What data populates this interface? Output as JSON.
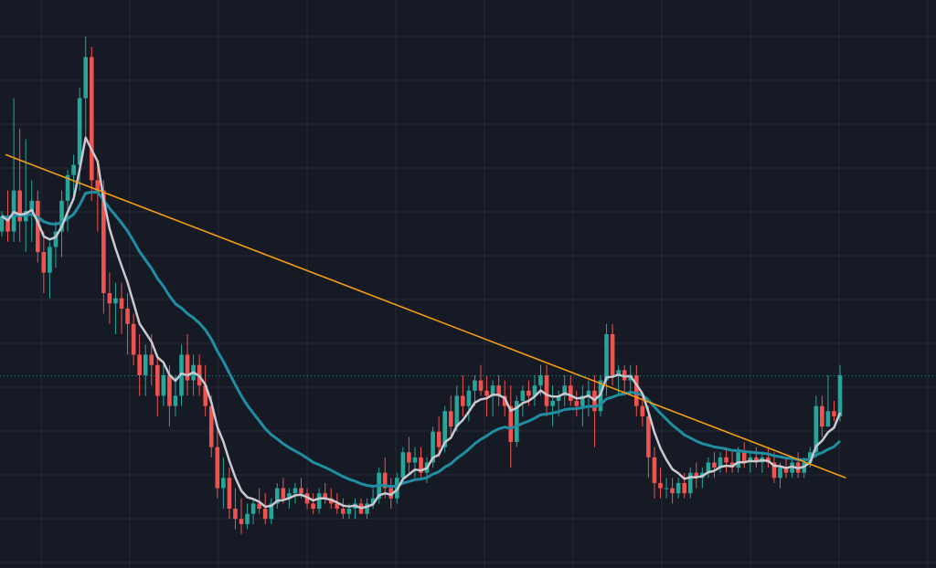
{
  "theme": {
    "background": "#161a25",
    "grid": "#242936",
    "up": "#26a69a",
    "down": "#ef5350",
    "ma_fast_color": "#c9c9cf",
    "ma_slow_color": "#1f8ea3",
    "trendline_color": "#f39c12",
    "price_line_color": "#26a69a"
  },
  "chart_data": {
    "type": "candlestick",
    "title": "",
    "xlabel": "",
    "ylabel": "",
    "grid": true,
    "ylim": [
      0,
      100
    ],
    "x_index_range": [
      0,
      155
    ],
    "last_price": 33.9,
    "candles": [
      [
        62,
        66,
        61,
        65
      ],
      [
        65,
        70,
        60,
        62
      ],
      [
        62,
        88,
        60,
        70
      ],
      [
        70,
        82,
        60,
        64
      ],
      [
        64,
        80,
        58,
        66
      ],
      [
        66,
        72,
        60,
        68
      ],
      [
        68,
        70,
        56,
        58
      ],
      [
        58,
        62,
        50,
        54
      ],
      [
        54,
        60,
        49,
        59
      ],
      [
        59,
        64,
        55,
        62
      ],
      [
        62,
        70,
        57,
        68
      ],
      [
        68,
        74,
        62,
        73
      ],
      [
        73,
        77,
        68,
        75
      ],
      [
        75,
        90,
        70,
        88
      ],
      [
        88,
        100,
        80,
        96
      ],
      [
        96,
        98,
        68,
        72
      ],
      [
        72,
        76,
        62,
        70
      ],
      [
        70,
        72,
        46,
        50
      ],
      [
        50,
        54,
        44,
        48
      ],
      [
        48,
        52,
        42,
        49
      ],
      [
        49,
        52,
        42,
        47
      ],
      [
        47,
        50,
        38,
        44
      ],
      [
        44,
        46,
        36,
        38
      ],
      [
        38,
        42,
        30,
        34
      ],
      [
        34,
        40,
        30,
        38
      ],
      [
        38,
        42,
        32,
        36
      ],
      [
        36,
        38,
        26,
        30
      ],
      [
        30,
        36,
        28,
        34
      ],
      [
        34,
        36,
        24,
        28
      ],
      [
        28,
        34,
        26,
        30
      ],
      [
        30,
        40,
        28,
        38
      ],
      [
        38,
        42,
        30,
        33
      ],
      [
        33,
        38,
        30,
        36
      ],
      [
        36,
        38,
        30,
        32
      ],
      [
        32,
        36,
        26,
        28
      ],
      [
        28,
        30,
        18,
        20
      ],
      [
        20,
        24,
        10,
        12
      ],
      [
        12,
        18,
        8,
        14
      ],
      [
        14,
        16,
        6,
        8
      ],
      [
        8,
        12,
        4,
        6
      ],
      [
        6,
        10,
        3,
        5
      ],
      [
        5,
        9,
        4,
        7
      ],
      [
        7,
        10,
        5,
        9
      ],
      [
        9,
        12,
        7,
        8
      ],
      [
        8,
        11,
        5,
        6
      ],
      [
        6,
        10,
        5,
        9
      ],
      [
        9,
        13,
        8,
        12
      ],
      [
        12,
        14,
        9,
        10
      ],
      [
        10,
        12,
        8,
        11
      ],
      [
        11,
        13,
        9,
        12
      ],
      [
        12,
        14,
        10,
        11
      ],
      [
        11,
        12,
        8,
        9
      ],
      [
        9,
        11,
        7,
        8
      ],
      [
        8,
        12,
        7,
        11
      ],
      [
        11,
        13,
        9,
        10
      ],
      [
        10,
        12,
        8,
        9
      ],
      [
        9,
        11,
        7,
        8
      ],
      [
        8,
        10,
        6,
        7
      ],
      [
        7,
        9,
        6,
        8
      ],
      [
        8,
        10,
        6,
        9
      ],
      [
        9,
        10,
        7,
        7
      ],
      [
        7,
        10,
        6,
        9
      ],
      [
        9,
        12,
        8,
        10
      ],
      [
        10,
        16,
        9,
        15
      ],
      [
        15,
        18,
        10,
        12
      ],
      [
        12,
        14,
        8,
        10
      ],
      [
        10,
        15,
        9,
        14
      ],
      [
        14,
        20,
        13,
        19
      ],
      [
        19,
        22,
        15,
        17
      ],
      [
        17,
        20,
        14,
        18
      ],
      [
        18,
        20,
        14,
        15
      ],
      [
        15,
        18,
        13,
        17
      ],
      [
        17,
        24,
        16,
        23
      ],
      [
        23,
        26,
        18,
        20
      ],
      [
        20,
        28,
        19,
        27
      ],
      [
        27,
        30,
        22,
        24
      ],
      [
        24,
        32,
        23,
        30
      ],
      [
        30,
        34,
        26,
        28
      ],
      [
        28,
        32,
        25,
        31
      ],
      [
        31,
        34,
        28,
        33
      ],
      [
        33,
        36,
        30,
        31
      ],
      [
        31,
        34,
        26,
        30
      ],
      [
        30,
        33,
        26,
        32
      ],
      [
        32,
        34,
        28,
        30
      ],
      [
        30,
        33,
        26,
        28
      ],
      [
        28,
        32,
        16,
        21
      ],
      [
        21,
        30,
        20,
        29
      ],
      [
        29,
        32,
        26,
        31
      ],
      [
        31,
        33,
        28,
        30
      ],
      [
        30,
        34,
        28,
        32
      ],
      [
        32,
        36,
        30,
        34
      ],
      [
        34,
        36,
        26,
        28
      ],
      [
        28,
        32,
        24,
        29
      ],
      [
        29,
        31,
        26,
        30
      ],
      [
        30,
        34,
        28,
        32
      ],
      [
        32,
        34,
        28,
        29
      ],
      [
        29,
        31,
        26,
        28
      ],
      [
        28,
        32,
        24,
        30
      ],
      [
        30,
        33,
        26,
        31
      ],
      [
        31,
        34,
        20,
        27
      ],
      [
        27,
        34,
        26,
        33
      ],
      [
        33,
        44,
        30,
        42
      ],
      [
        42,
        44,
        32,
        34
      ],
      [
        34,
        36,
        30,
        35
      ],
      [
        35,
        36,
        30,
        33
      ],
      [
        33,
        36,
        30,
        34
      ],
      [
        34,
        36,
        26,
        28
      ],
      [
        28,
        30,
        24,
        26
      ],
      [
        26,
        28,
        14,
        18
      ],
      [
        18,
        20,
        10,
        13
      ],
      [
        13,
        16,
        10,
        12
      ],
      [
        12,
        14,
        10,
        12
      ],
      [
        12,
        14,
        9,
        11
      ],
      [
        11,
        14,
        10,
        13
      ],
      [
        13,
        15,
        10,
        11
      ],
      [
        11,
        16,
        10,
        15
      ],
      [
        15,
        17,
        12,
        14
      ],
      [
        14,
        16,
        12,
        15
      ],
      [
        15,
        18,
        14,
        17
      ],
      [
        17,
        19,
        14,
        16
      ],
      [
        16,
        19,
        15,
        18
      ],
      [
        18,
        20,
        15,
        17
      ],
      [
        17,
        19,
        15,
        16
      ],
      [
        16,
        20,
        15,
        19
      ],
      [
        19,
        21,
        16,
        17
      ],
      [
        17,
        19,
        15,
        18
      ],
      [
        18,
        20,
        16,
        17
      ],
      [
        17,
        19,
        15,
        18
      ],
      [
        18,
        20,
        16,
        17
      ],
      [
        17,
        19,
        13,
        14
      ],
      [
        14,
        17,
        12,
        16
      ],
      [
        16,
        18,
        14,
        15
      ],
      [
        15,
        18,
        14,
        17
      ],
      [
        17,
        19,
        14,
        15
      ],
      [
        15,
        18,
        14,
        17
      ],
      [
        17,
        20,
        16,
        19
      ],
      [
        19,
        30,
        18,
        28
      ],
      [
        28,
        30,
        22,
        24
      ],
      [
        24,
        34,
        24,
        27
      ],
      [
        27,
        29,
        25,
        26
      ],
      [
        26,
        36,
        25,
        34
      ]
    ],
    "series": [
      {
        "type": "line",
        "values": []
      },
      {
        "type": "line",
        "values": []
      }
    ],
    "trendline": {
      "from": [
        0,
        77
      ],
      "to": [
        141,
        14
      ]
    }
  }
}
